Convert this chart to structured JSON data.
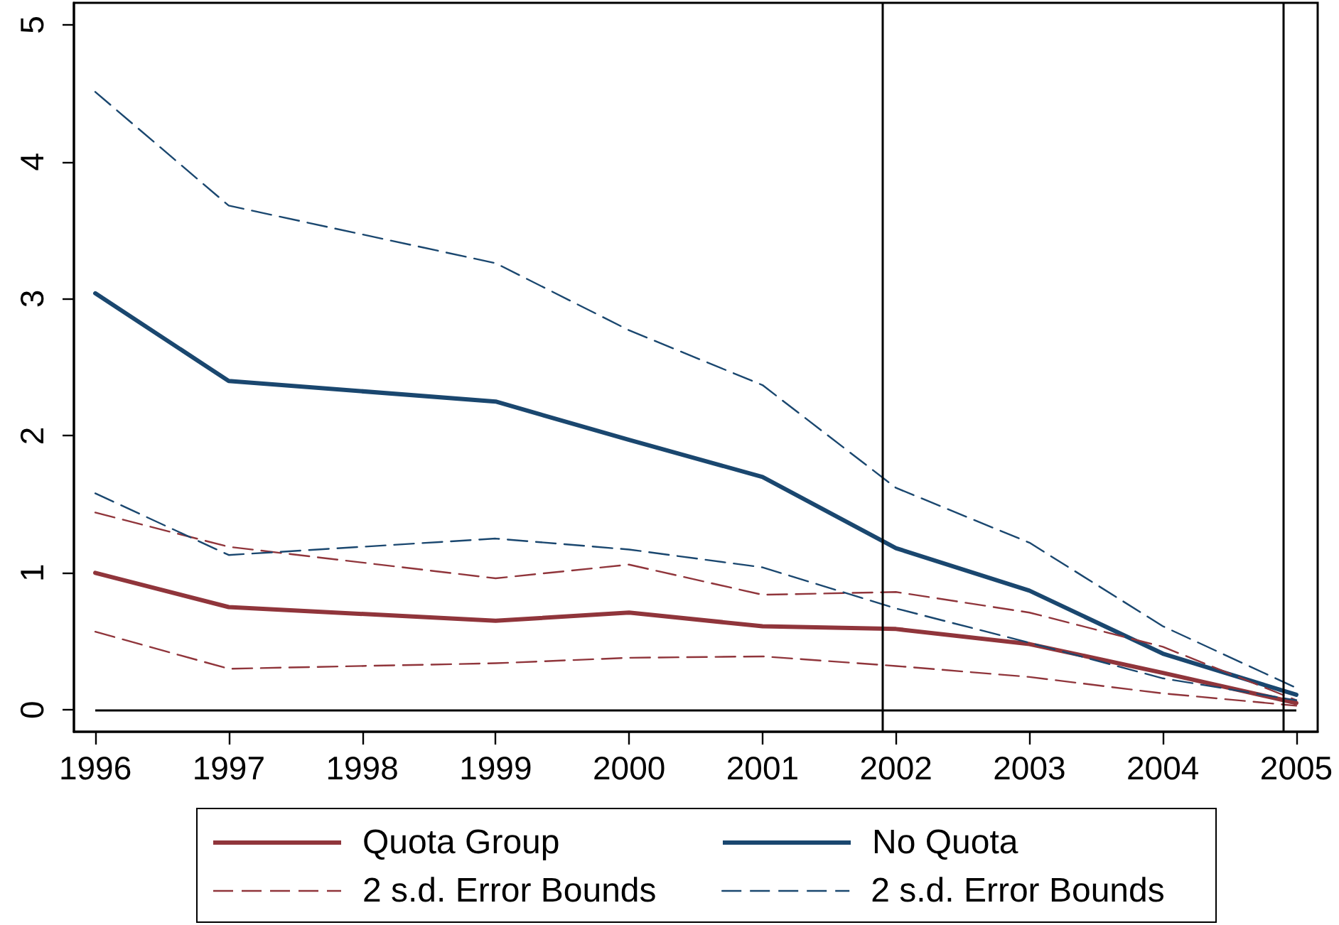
{
  "chart_data": {
    "type": "line",
    "x": [
      1996,
      1997,
      1999,
      2000,
      2001,
      2002,
      2003,
      2004,
      2005
    ],
    "series": [
      {
        "name": "Quota Group",
        "color": "#90353b",
        "values": [
          1.0,
          0.75,
          0.65,
          0.71,
          0.61,
          0.59,
          0.48,
          0.27,
          0.05
        ]
      },
      {
        "name": "No Quota",
        "color": "#1a476f",
        "values": [
          3.04,
          2.4,
          2.25,
          1.97,
          1.7,
          1.18,
          0.87,
          0.41,
          0.11
        ]
      },
      {
        "name": "2 s.d. Error Bounds",
        "color": "#90353b",
        "line_style": "dashed",
        "values": [
          1.44,
          1.19,
          0.96,
          1.06,
          0.84,
          0.86,
          0.71,
          0.46,
          0.07
        ]
      },
      {
        "color": "#90353b",
        "line_style": "dashed",
        "values": [
          0.57,
          0.3,
          0.34,
          0.38,
          0.39,
          0.32,
          0.24,
          0.12,
          0.03
        ]
      },
      {
        "name": "2 s.d. Error Bounds",
        "color": "#1a476f",
        "line_style": "dashed",
        "values": [
          4.51,
          3.68,
          3.26,
          2.77,
          2.37,
          1.62,
          1.22,
          0.61,
          0.16
        ]
      },
      {
        "color": "#1a476f",
        "line_style": "dashed",
        "values": [
          1.58,
          1.13,
          1.25,
          1.17,
          1.04,
          0.74,
          0.49,
          0.23,
          0.07
        ]
      }
    ],
    "xlim": [
      1995.84,
      2005.16
    ],
    "xticks": [
      1996,
      1997,
      1998,
      1999,
      2000,
      2001,
      2002,
      2003,
      2004,
      2005
    ],
    "ylim": [
      -0.16,
      5.16
    ],
    "yticks": [
      0,
      1,
      2,
      3,
      4,
      5
    ],
    "ref_lines": [
      {
        "axis": "x",
        "value": 2001.9,
        "color": "#000000"
      },
      {
        "axis": "x",
        "value": 2004.9,
        "color": "#000000"
      },
      {
        "axis": "y",
        "value": 0,
        "color": "#000000"
      }
    ],
    "grid": false,
    "legend": "bottom",
    "line_style": "solid",
    "marker": "none"
  }
}
